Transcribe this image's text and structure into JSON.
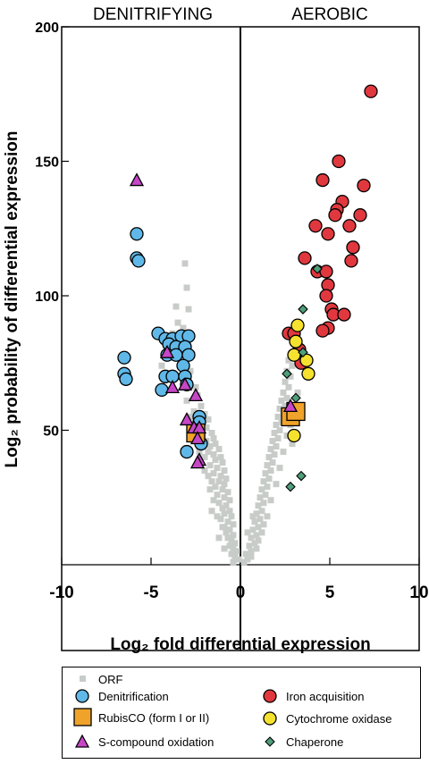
{
  "chart_data": {
    "type": "scatter",
    "title": "",
    "xlabel": "Log₂ fold differential expression",
    "ylabel": "Log₂ probability of differential expression",
    "xlim": [
      -10,
      10
    ],
    "ylim": [
      0,
      200
    ],
    "xticks": [
      "-10",
      "-5",
      "0",
      "5",
      "10"
    ],
    "yticks": [
      "50",
      "100",
      "150",
      "200"
    ],
    "panel_labels": [
      "DENITRIFYING",
      "AEROBIC"
    ],
    "grid": false,
    "legend_position": "bottom",
    "series": [
      {
        "name": "ORF",
        "marker": "square-small",
        "color": "#c8ccc9",
        "points": [
          [
            -3.1,
            112
          ],
          [
            -3.0,
            103
          ],
          [
            -3.6,
            96
          ],
          [
            -2.9,
            95
          ],
          [
            -3.5,
            90
          ],
          [
            -3.2,
            88
          ],
          [
            -3.8,
            86
          ],
          [
            -3.0,
            84
          ],
          [
            -4.1,
            82
          ],
          [
            -3.4,
            80
          ],
          [
            -2.7,
            78
          ],
          [
            -3.9,
            77
          ],
          [
            -3.2,
            75
          ],
          [
            -4.4,
            74
          ],
          [
            -2.8,
            72
          ],
          [
            -3.5,
            70
          ],
          [
            -2.9,
            68
          ],
          [
            -2.5,
            66
          ],
          [
            -2.4,
            63
          ],
          [
            -3.0,
            61
          ],
          [
            -2.2,
            59
          ],
          [
            -2.6,
            57
          ],
          [
            -2.0,
            56
          ],
          [
            -2.8,
            55
          ],
          [
            -1.8,
            54
          ],
          [
            -2.3,
            52
          ],
          [
            -1.9,
            51
          ],
          [
            -2.5,
            50
          ],
          [
            -1.6,
            49
          ],
          [
            -2.1,
            48
          ],
          [
            -1.5,
            47
          ],
          [
            -1.9,
            46
          ],
          [
            -1.4,
            45
          ],
          [
            -2.2,
            45
          ],
          [
            -1.7,
            44
          ],
          [
            -1.2,
            43
          ],
          [
            -1.8,
            42
          ],
          [
            -1.5,
            41
          ],
          [
            -1.1,
            40
          ],
          [
            -2.0,
            40
          ],
          [
            -1.4,
            39
          ],
          [
            -1.0,
            38
          ],
          [
            -1.7,
            37
          ],
          [
            -1.3,
            36
          ],
          [
            -0.9,
            35
          ],
          [
            -1.5,
            34
          ],
          [
            -1.1,
            33
          ],
          [
            -0.8,
            32
          ],
          [
            -1.6,
            31
          ],
          [
            -1.2,
            31
          ],
          [
            -0.9,
            30
          ],
          [
            -1.4,
            29
          ],
          [
            -1.0,
            28
          ],
          [
            -0.7,
            27
          ],
          [
            -1.3,
            26
          ],
          [
            -0.9,
            25
          ],
          [
            -0.6,
            24
          ],
          [
            -1.2,
            23
          ],
          [
            -0.8,
            22
          ],
          [
            -1.0,
            21
          ],
          [
            -0.6,
            20
          ],
          [
            -0.9,
            19
          ],
          [
            -0.5,
            18
          ],
          [
            -1.1,
            17
          ],
          [
            -0.7,
            16
          ],
          [
            -0.4,
            15
          ],
          [
            -0.9,
            14
          ],
          [
            -0.6,
            13
          ],
          [
            -0.8,
            12
          ],
          [
            -0.4,
            11
          ],
          [
            -0.7,
            10
          ],
          [
            -0.5,
            9
          ],
          [
            -0.3,
            8
          ],
          [
            -0.6,
            7
          ],
          [
            -0.4,
            6
          ],
          [
            -0.2,
            5
          ],
          [
            -0.5,
            4
          ],
          [
            -0.3,
            3
          ],
          [
            -0.1,
            2
          ],
          [
            -0.4,
            1
          ],
          [
            -1.3,
            18
          ],
          [
            -1.0,
            14
          ],
          [
            -1.2,
            10
          ],
          [
            -0.9,
            6
          ],
          [
            -1.5,
            24
          ],
          [
            -1.7,
            28
          ],
          [
            -2.0,
            35
          ],
          [
            -1.8,
            33
          ],
          [
            -2.3,
            42
          ],
          [
            -1.6,
            20
          ],
          [
            0.2,
            1
          ],
          [
            0.4,
            2
          ],
          [
            0.3,
            4
          ],
          [
            0.6,
            5
          ],
          [
            0.5,
            7
          ],
          [
            0.8,
            8
          ],
          [
            0.6,
            10
          ],
          [
            0.9,
            11
          ],
          [
            0.7,
            13
          ],
          [
            1.0,
            14
          ],
          [
            0.8,
            16
          ],
          [
            1.1,
            17
          ],
          [
            0.9,
            19
          ],
          [
            1.2,
            20
          ],
          [
            1.0,
            22
          ],
          [
            1.3,
            23
          ],
          [
            1.1,
            25
          ],
          [
            1.4,
            26
          ],
          [
            1.2,
            28
          ],
          [
            1.5,
            29
          ],
          [
            1.3,
            31
          ],
          [
            1.6,
            32
          ],
          [
            1.4,
            34
          ],
          [
            1.7,
            35
          ],
          [
            1.5,
            37
          ],
          [
            1.8,
            38
          ],
          [
            1.6,
            40
          ],
          [
            1.9,
            41
          ],
          [
            1.7,
            43
          ],
          [
            2.0,
            44
          ],
          [
            1.8,
            46
          ],
          [
            2.1,
            47
          ],
          [
            1.9,
            49
          ],
          [
            2.2,
            50
          ],
          [
            2.0,
            52
          ],
          [
            2.3,
            53
          ],
          [
            2.1,
            55
          ],
          [
            2.4,
            56
          ],
          [
            2.2,
            58
          ],
          [
            2.5,
            59
          ],
          [
            2.3,
            61
          ],
          [
            2.6,
            62
          ],
          [
            2.4,
            64
          ],
          [
            2.7,
            66
          ],
          [
            2.5,
            68
          ],
          [
            2.8,
            70
          ],
          [
            2.6,
            72
          ],
          [
            2.9,
            74
          ],
          [
            2.7,
            76
          ],
          [
            3.0,
            79
          ],
          [
            3.1,
            82
          ],
          [
            2.9,
            84
          ],
          [
            3.2,
            88
          ],
          [
            1.2,
            12
          ],
          [
            1.5,
            18
          ],
          [
            1.7,
            24
          ],
          [
            2.0,
            30
          ],
          [
            2.2,
            36
          ],
          [
            2.4,
            42
          ],
          [
            2.6,
            48
          ],
          [
            1.0,
            9
          ],
          [
            1.3,
            15
          ],
          [
            0.6,
            3
          ],
          [
            0.9,
            6
          ],
          [
            2.8,
            52
          ],
          [
            3.0,
            58
          ],
          [
            3.2,
            64
          ],
          [
            2.9,
            45
          ],
          [
            0.4,
            12
          ],
          [
            0.7,
            18
          ]
        ]
      },
      {
        "name": "Denitrification",
        "marker": "circle",
        "color": "#5fb8e8",
        "points": [
          [
            -5.8,
            123
          ],
          [
            -5.8,
            114
          ],
          [
            -5.7,
            113
          ],
          [
            -6.5,
            77
          ],
          [
            -6.5,
            71
          ],
          [
            -6.4,
            69
          ],
          [
            -4.6,
            86
          ],
          [
            -4.2,
            84
          ],
          [
            -3.8,
            84
          ],
          [
            -3.3,
            85
          ],
          [
            -2.9,
            85
          ],
          [
            -4.0,
            82
          ],
          [
            -3.6,
            81
          ],
          [
            -3.1,
            81
          ],
          [
            -4.1,
            78
          ],
          [
            -3.6,
            78
          ],
          [
            -2.9,
            78
          ],
          [
            -3.2,
            74
          ],
          [
            -4.2,
            70
          ],
          [
            -3.8,
            70
          ],
          [
            -3.1,
            70
          ],
          [
            -3.0,
            67
          ],
          [
            -4.4,
            65
          ],
          [
            -2.3,
            55
          ],
          [
            -2.3,
            53
          ],
          [
            -3.0,
            42
          ],
          [
            -2.2,
            45
          ]
        ]
      },
      {
        "name": "RubisCO (form I or II)",
        "marker": "square",
        "color": "#f0a32a",
        "points": [
          [
            -2.5,
            49
          ],
          [
            2.8,
            55
          ],
          [
            3.1,
            57
          ]
        ]
      },
      {
        "name": "S-compound oxidation",
        "marker": "triangle",
        "color": "#c646c6",
        "points": [
          [
            -5.8,
            143
          ],
          [
            -4.1,
            79
          ],
          [
            -3.8,
            66
          ],
          [
            -3.1,
            67
          ],
          [
            -2.5,
            63
          ],
          [
            -3.0,
            54
          ],
          [
            -2.6,
            51
          ],
          [
            -2.3,
            51
          ],
          [
            -2.4,
            47
          ],
          [
            -2.3,
            39
          ],
          [
            -2.4,
            38
          ],
          [
            2.8,
            59
          ]
        ]
      },
      {
        "name": "Iron acquisition",
        "marker": "circle",
        "color": "#e0383e",
        "points": [
          [
            7.3,
            176
          ],
          [
            5.5,
            150
          ],
          [
            6.9,
            141
          ],
          [
            4.6,
            143
          ],
          [
            5.7,
            135
          ],
          [
            5.4,
            132
          ],
          [
            5.3,
            130
          ],
          [
            6.7,
            130
          ],
          [
            6.1,
            126
          ],
          [
            4.2,
            126
          ],
          [
            4.9,
            123
          ],
          [
            6.3,
            118
          ],
          [
            3.6,
            114
          ],
          [
            4.3,
            109
          ],
          [
            4.8,
            109
          ],
          [
            6.2,
            113
          ],
          [
            4.9,
            104
          ],
          [
            4.8,
            100
          ],
          [
            5.1,
            95
          ],
          [
            5.2,
            93
          ],
          [
            5.8,
            93
          ],
          [
            4.9,
            88
          ],
          [
            4.6,
            87
          ],
          [
            3.3,
            80
          ],
          [
            3.4,
            75
          ],
          [
            2.7,
            86
          ],
          [
            3.0,
            86
          ]
        ]
      },
      {
        "name": "Cytochrome oxidase",
        "marker": "circle",
        "color": "#f5e22e",
        "points": [
          [
            3.2,
            89
          ],
          [
            3.1,
            83
          ],
          [
            3.7,
            76
          ],
          [
            3.0,
            78
          ],
          [
            3.8,
            71
          ],
          [
            3.0,
            48
          ]
        ]
      },
      {
        "name": "Chaperone",
        "marker": "diamond",
        "color": "#4f9e7a",
        "points": [
          [
            4.3,
            110
          ],
          [
            3.5,
            95
          ],
          [
            3.5,
            79
          ],
          [
            2.6,
            71
          ],
          [
            3.1,
            62
          ],
          [
            3.4,
            33
          ],
          [
            2.8,
            29
          ]
        ]
      }
    ]
  }
}
